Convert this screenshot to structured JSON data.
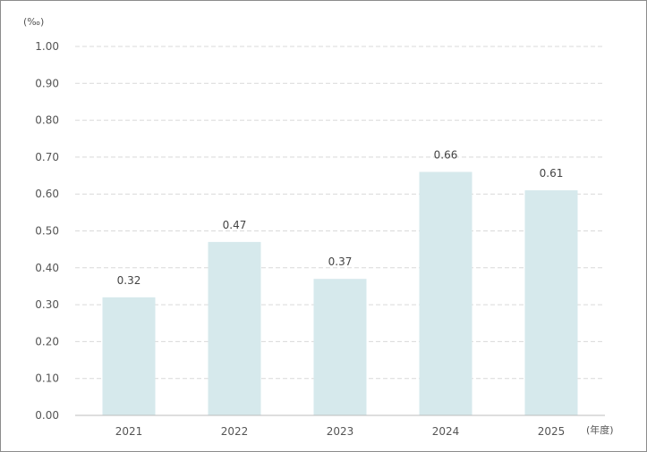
{
  "chart_data": {
    "type": "bar",
    "categories": [
      "2021",
      "2022",
      "2023",
      "2024",
      "2025"
    ],
    "values": [
      0.32,
      0.47,
      0.37,
      0.66,
      0.61
    ],
    "value_labels": [
      "0.32",
      "0.47",
      "0.37",
      "0.66",
      "0.61"
    ],
    "y_ticks": [
      "0.00",
      "0.10",
      "0.20",
      "0.30",
      "0.40",
      "0.50",
      "0.60",
      "0.70",
      "0.80",
      "0.90",
      "1.00"
    ],
    "ylim": [
      0,
      1.0
    ],
    "y_unit": "(‰)",
    "x_unit": "(年度)",
    "grid": true,
    "grid_style": "dashed",
    "bar_color": "#d6e9ec",
    "title": "",
    "xlabel": "",
    "ylabel": ""
  }
}
